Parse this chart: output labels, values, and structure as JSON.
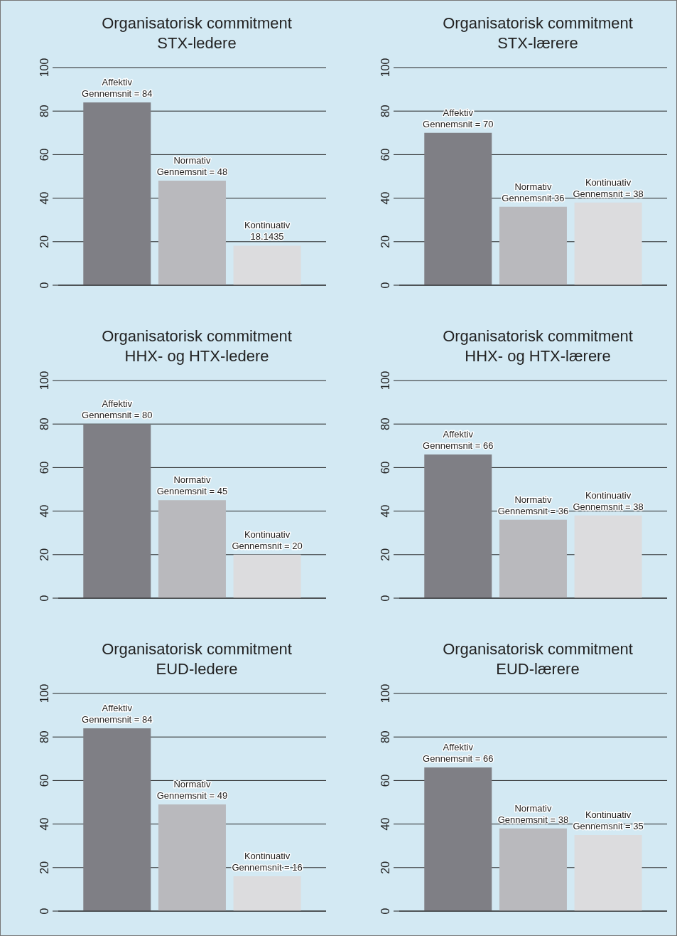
{
  "chart_data": [
    {
      "type": "bar",
      "title": "Organisatorisk commitment\nSTX-ledere",
      "categories": [
        null,
        null,
        null
      ],
      "values": [
        84,
        48,
        18.1435
      ],
      "colors": [
        "#7f7f85",
        "#b9b9bd",
        "#dcdcde"
      ],
      "value_labels": [
        "Affektiv\nGennemsnit = 84",
        "Normativ\nGennemsnit = 48",
        "Kontinuativ\n18.1435"
      ],
      "ylim": [
        0,
        100
      ],
      "yticks": [
        0,
        20,
        40,
        60,
        80,
        100
      ],
      "grid": "y",
      "tick_labels": "y"
    },
    {
      "type": "bar",
      "title": "Organisatorisk commitment\nSTX-lærere",
      "categories": [
        null,
        null,
        null
      ],
      "values": [
        70,
        36,
        38
      ],
      "colors": [
        "#7f7f85",
        "#b9b9bd",
        "#dcdcde"
      ],
      "value_labels": [
        "Affektiv\nGennemsnit = 70",
        "Normativ\nGennemsnit 36",
        "Kontinuativ\nGennemsnit = 38"
      ],
      "ylim": [
        0,
        100
      ],
      "yticks": [
        0,
        20,
        40,
        60,
        80,
        100
      ],
      "grid": "y",
      "tick_labels": "y"
    },
    {
      "type": "bar",
      "title": "Organisatorisk commitment\nHHX- og HTX-ledere",
      "categories": [
        null,
        null,
        null
      ],
      "values": [
        80,
        45,
        20
      ],
      "colors": [
        "#7f7f85",
        "#b9b9bd",
        "#dcdcde"
      ],
      "value_labels": [
        "Affektiv\nGennemsnit = 80",
        "Normativ\nGennemsnit = 45",
        "Kontinuativ\nGennemsnit = 20"
      ],
      "ylim": [
        0,
        100
      ],
      "yticks": [
        0,
        20,
        40,
        60,
        80,
        100
      ],
      "grid": "y",
      "tick_labels": "y"
    },
    {
      "type": "bar",
      "title": "Organisatorisk commitment\nHHX- og HTX-lærere",
      "categories": [
        null,
        null,
        null
      ],
      "values": [
        66,
        36,
        38
      ],
      "colors": [
        "#7f7f85",
        "#b9b9bd",
        "#dcdcde"
      ],
      "value_labels": [
        "Affektiv\nGennemsnit = 66",
        "Normativ\nGennemsnit = 36",
        "Kontinuativ\nGennemsnit = 38"
      ],
      "ylim": [
        0,
        100
      ],
      "yticks": [
        0,
        20,
        40,
        60,
        80,
        100
      ],
      "grid": "y",
      "tick_labels": "y"
    },
    {
      "type": "bar",
      "title": "Organisatorisk commitment\nEUD-ledere",
      "categories": [
        null,
        null,
        null
      ],
      "values": [
        84,
        49,
        16
      ],
      "colors": [
        "#7f7f85",
        "#b9b9bd",
        "#dcdcde"
      ],
      "value_labels": [
        "Affektiv\nGennemsnit = 84",
        "Normativ\nGennemsnit = 49",
        "Kontinuativ\nGennemsnit = 16"
      ],
      "ylim": [
        0,
        100
      ],
      "yticks": [
        0,
        20,
        40,
        60,
        80,
        100
      ],
      "grid": "y",
      "tick_labels": "y"
    },
    {
      "type": "bar",
      "title": "Organisatorisk commitment\nEUD-lærere",
      "categories": [
        null,
        null,
        null
      ],
      "values": [
        66,
        38,
        35
      ],
      "colors": [
        "#7f7f85",
        "#b9b9bd",
        "#dcdcde"
      ],
      "value_labels": [
        "Affektiv\nGennemsnit = 66",
        "Normativ\nGennemsnit = 38",
        "Kontinuativ\nGennemsnit = 35"
      ],
      "ylim": [
        0,
        100
      ],
      "yticks": [
        0,
        20,
        40,
        60,
        80,
        100
      ],
      "grid": "y",
      "tick_labels": "y"
    }
  ]
}
